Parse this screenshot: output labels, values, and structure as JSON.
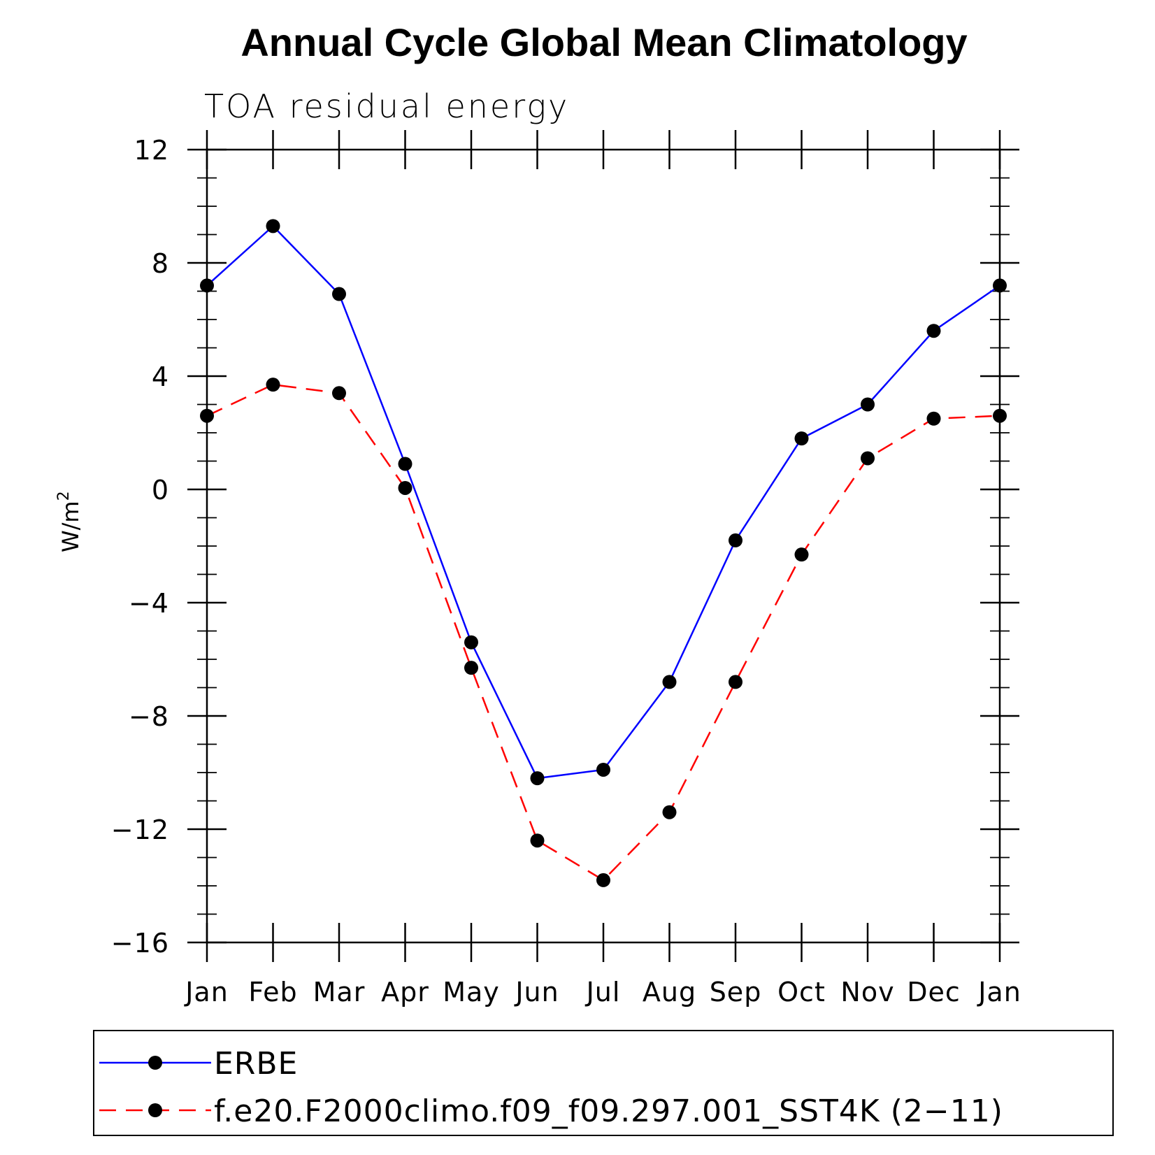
{
  "chart_data": {
    "type": "line",
    "title": "Annual Cycle Global Mean Climatology",
    "subtitle": "TOA residual energy",
    "xlabel": "",
    "ylabel": "W/m",
    "ylabel_superscript": "2",
    "categories": [
      "Jan",
      "Feb",
      "Mar",
      "Apr",
      "May",
      "Jun",
      "Jul",
      "Aug",
      "Sep",
      "Oct",
      "Nov",
      "Dec",
      "Jan"
    ],
    "ylim": [
      -16,
      12
    ],
    "yticks": [
      -16,
      -12,
      -8,
      -4,
      0,
      4,
      8,
      12
    ],
    "ytick_labels": [
      "−16",
      "−12",
      "−8",
      "−4",
      "0",
      "4",
      "8",
      "12"
    ],
    "grid": false,
    "legend_position": "bottom",
    "series": [
      {
        "name": "ERBE",
        "color": "#0000ff",
        "dash": "solid",
        "values": [
          7.2,
          9.3,
          6.9,
          0.9,
          -5.4,
          -10.2,
          -9.9,
          -6.8,
          -1.8,
          1.8,
          3.0,
          5.6,
          7.2
        ]
      },
      {
        "name": "f.e20.F2000climo.f09_f09.297.001_SST4K (2−11)",
        "color": "#ff0000",
        "dash": "dashed",
        "values": [
          2.6,
          3.7,
          3.4,
          0.05,
          -6.3,
          -12.4,
          -13.8,
          -11.4,
          -6.8,
          -2.3,
          1.1,
          2.5,
          2.6
        ]
      }
    ]
  }
}
